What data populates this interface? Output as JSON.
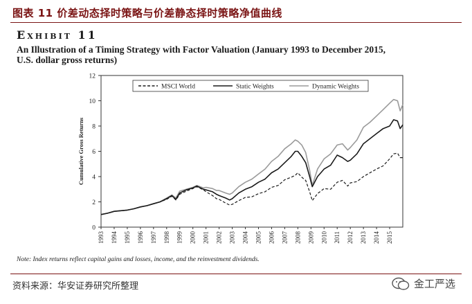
{
  "header": {
    "figure_title": "图表 11 价差动态择时策略与价差静态择时策略净值曲线"
  },
  "exhibit": {
    "label": "Exhibit 11",
    "subtitle_line1": "An Illustration of a Timing Strategy with Factor Valuation (January 1993 to December 2015,",
    "subtitle_line2": "U.S. dollar gross returns)"
  },
  "footer": {
    "note": "Note: Index returns reflect capital gains and losses, income, and the reinvestment dividends.",
    "source": "资料来源：华安证券研究所整理",
    "brand": "金工严选"
  },
  "chart_data": {
    "type": "line",
    "title": "",
    "xlabel": "",
    "ylabel": "Cumulative Gross Returns",
    "xlim": [
      1993,
      2016
    ],
    "ylim": [
      0,
      12
    ],
    "yticks": [
      0,
      2,
      4,
      6,
      8,
      10,
      12
    ],
    "x_tick_labels": [
      "1993",
      "1994",
      "1995",
      "1996",
      "1997",
      "1998",
      "1999",
      "2000",
      "2001",
      "2002",
      "2003",
      "2004",
      "2005",
      "2006",
      "2007",
      "2008",
      "2009",
      "2010",
      "2011",
      "2012",
      "2013",
      "2014",
      "2015"
    ],
    "legend_position": "top-center",
    "series": [
      {
        "name": "MSCI World",
        "style": "dashed",
        "color": "#1a1a1a",
        "x": [
          1993,
          1993.5,
          1994,
          1994.5,
          1995,
          1995.5,
          1996,
          1996.5,
          1997,
          1997.5,
          1998,
          1998.4,
          1998.7,
          1999,
          1999.5,
          2000,
          2000.3,
          2000.8,
          2001,
          2001.5,
          2001.8,
          2002,
          2002.5,
          2002.8,
          2003,
          2003.5,
          2004,
          2004.5,
          2005,
          2005.5,
          2006,
          2006.5,
          2007,
          2007.5,
          2007.8,
          2008,
          2008.3,
          2008.6,
          2008.9,
          2009.1,
          2009.5,
          2010,
          2010.5,
          2011,
          2011.4,
          2011.8,
          2012,
          2012.5,
          2013,
          2013.5,
          2014,
          2014.5,
          2015,
          2015.3,
          2015.6,
          2015.8,
          2016
        ],
        "values": [
          1.0,
          1.1,
          1.25,
          1.3,
          1.35,
          1.45,
          1.6,
          1.7,
          1.85,
          2.0,
          2.2,
          2.45,
          2.15,
          2.6,
          2.85,
          3.05,
          3.2,
          2.95,
          2.8,
          2.5,
          2.25,
          2.2,
          1.9,
          1.75,
          1.8,
          2.1,
          2.35,
          2.4,
          2.65,
          2.8,
          3.15,
          3.3,
          3.75,
          3.95,
          4.1,
          4.3,
          3.95,
          3.7,
          2.8,
          2.1,
          2.65,
          3.05,
          3.0,
          3.55,
          3.7,
          3.25,
          3.5,
          3.6,
          4.0,
          4.3,
          4.6,
          4.85,
          5.4,
          5.8,
          5.85,
          5.5,
          5.5
        ]
      },
      {
        "name": "Static Weights",
        "style": "solid",
        "color": "#1a1a1a",
        "x": [
          1993,
          1993.5,
          1994,
          1994.5,
          1995,
          1995.5,
          1996,
          1996.5,
          1997,
          1997.5,
          1998,
          1998.4,
          1998.7,
          1999,
          1999.5,
          2000,
          2000.3,
          2000.8,
          2001,
          2001.5,
          2001.8,
          2002,
          2002.5,
          2002.8,
          2003,
          2003.5,
          2004,
          2004.5,
          2005,
          2005.5,
          2006,
          2006.5,
          2007,
          2007.5,
          2007.8,
          2008,
          2008.3,
          2008.6,
          2008.9,
          2009.1,
          2009.5,
          2010,
          2010.5,
          2011,
          2011.4,
          2011.8,
          2012,
          2012.5,
          2013,
          2013.5,
          2014,
          2014.5,
          2015,
          2015.3,
          2015.6,
          2015.8,
          2016
        ],
        "values": [
          1.0,
          1.1,
          1.25,
          1.3,
          1.35,
          1.45,
          1.6,
          1.7,
          1.85,
          2.0,
          2.25,
          2.5,
          2.2,
          2.7,
          2.95,
          3.1,
          3.25,
          3.0,
          2.95,
          2.8,
          2.6,
          2.5,
          2.3,
          2.15,
          2.25,
          2.7,
          3.0,
          3.2,
          3.55,
          3.8,
          4.3,
          4.6,
          5.1,
          5.6,
          6.0,
          6.0,
          5.6,
          5.1,
          4.0,
          3.2,
          4.0,
          4.6,
          4.9,
          5.7,
          5.5,
          5.2,
          5.3,
          5.8,
          6.6,
          7.0,
          7.4,
          7.8,
          8.0,
          8.5,
          8.4,
          7.8,
          8.1
        ]
      },
      {
        "name": "Dynamic Weights",
        "style": "solid",
        "color": "#9a9a9a",
        "x": [
          1993,
          1993.5,
          1994,
          1994.5,
          1995,
          1995.5,
          1996,
          1996.5,
          1997,
          1997.5,
          1998,
          1998.4,
          1998.7,
          1999,
          1999.5,
          2000,
          2000.3,
          2000.8,
          2001,
          2001.5,
          2001.8,
          2002,
          2002.5,
          2002.8,
          2003,
          2003.5,
          2004,
          2004.5,
          2005,
          2005.5,
          2006,
          2006.5,
          2007,
          2007.5,
          2007.8,
          2008,
          2008.3,
          2008.6,
          2008.9,
          2009.1,
          2009.5,
          2010,
          2010.5,
          2011,
          2011.4,
          2011.8,
          2012,
          2012.5,
          2013,
          2013.5,
          2014,
          2014.5,
          2015,
          2015.3,
          2015.6,
          2015.8,
          2016
        ],
        "values": [
          1.0,
          1.1,
          1.25,
          1.3,
          1.35,
          1.45,
          1.6,
          1.7,
          1.85,
          2.0,
          2.3,
          2.55,
          2.3,
          2.85,
          3.0,
          3.15,
          3.3,
          3.1,
          3.15,
          3.05,
          2.9,
          2.9,
          2.7,
          2.6,
          2.7,
          3.2,
          3.55,
          3.8,
          4.2,
          4.6,
          5.2,
          5.6,
          6.2,
          6.6,
          6.9,
          6.8,
          6.5,
          5.9,
          4.5,
          3.3,
          4.6,
          5.4,
          5.8,
          6.5,
          6.6,
          6.1,
          6.3,
          6.9,
          7.9,
          8.3,
          8.8,
          9.3,
          9.8,
          10.1,
          10.0,
          9.2,
          9.7
        ]
      }
    ]
  }
}
